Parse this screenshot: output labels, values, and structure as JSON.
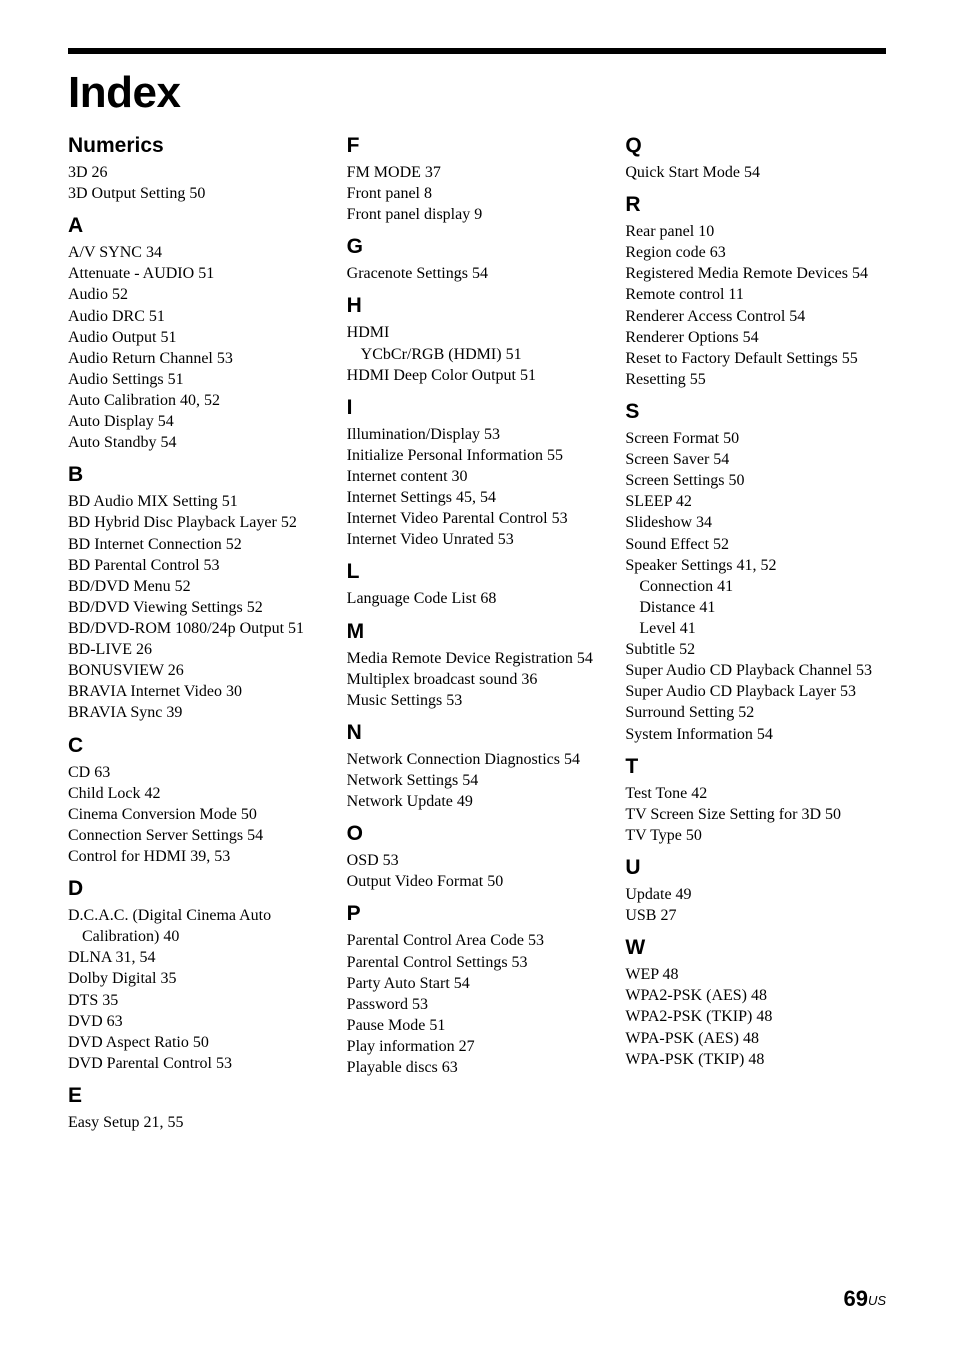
{
  "title": "Index",
  "page_number": "69",
  "page_suffix": "US",
  "colors": {
    "text": "#000000",
    "background": "#ffffff",
    "bar": "#000000"
  },
  "typography": {
    "title_font": "Arial",
    "title_weight": 900,
    "title_size_pt": 33,
    "letter_font": "Arial",
    "letter_weight": 700,
    "letter_size_pt": 16,
    "entry_font": "Times New Roman",
    "entry_size_pt": 12
  },
  "columns": [
    {
      "groups": [
        {
          "letter": "Numerics",
          "entries": [
            "3D 26",
            "3D Output Setting 50"
          ]
        },
        {
          "letter": "A",
          "entries": [
            "A/V SYNC 34",
            "Attenuate - AUDIO 51",
            "Audio 52",
            "Audio DRC 51",
            "Audio Output 51",
            "Audio Return Channel 53",
            "Audio Settings 51",
            "Auto Calibration 40, 52",
            "Auto Display 54",
            "Auto Standby 54"
          ]
        },
        {
          "letter": "B",
          "entries": [
            "BD Audio MIX Setting 51",
            "BD Hybrid Disc Playback Layer 52",
            "BD Internet Connection 52",
            "BD Parental Control 53",
            "BD/DVD Menu 52",
            "BD/DVD Viewing Settings 52",
            "BD/DVD-ROM 1080/24p Output 51",
            "BD-LIVE 26",
            "BONUSVIEW 26",
            "BRAVIA Internet Video 30",
            "BRAVIA Sync 39"
          ]
        },
        {
          "letter": "C",
          "entries": [
            "CD 63",
            "Child Lock 42",
            "Cinema Conversion Mode 50",
            "Connection Server Settings 54",
            "Control for HDMI 39, 53"
          ]
        },
        {
          "letter": "D",
          "entries": [
            "D.C.A.C. (Digital Cinema Auto Calibration) 40",
            "DLNA 31, 54",
            "Dolby Digital 35",
            "DTS 35",
            "DVD 63",
            "DVD Aspect Ratio 50",
            "DVD Parental Control 53"
          ]
        },
        {
          "letter": "E",
          "entries": [
            "Easy Setup 21, 55"
          ]
        }
      ]
    },
    {
      "groups": [
        {
          "letter": "F",
          "entries": [
            "FM MODE 37",
            "Front panel 8",
            "Front panel display 9"
          ]
        },
        {
          "letter": "G",
          "entries": [
            "Gracenote Settings 54"
          ]
        },
        {
          "letter": "H",
          "entries": [
            "HDMI",
            "  YCbCr/RGB (HDMI) 51",
            "HDMI Deep Color Output 51"
          ]
        },
        {
          "letter": "I",
          "entries": [
            "Illumination/Display 53",
            "Initialize Personal Information 55",
            "Internet content 30",
            "Internet Settings 45, 54",
            "Internet Video Parental Control 53",
            "Internet Video Unrated 53"
          ]
        },
        {
          "letter": "L",
          "entries": [
            "Language Code List 68"
          ]
        },
        {
          "letter": "M",
          "entries": [
            "Media Remote Device Registration 54",
            "Multiplex broadcast sound 36",
            "Music Settings 53"
          ]
        },
        {
          "letter": "N",
          "entries": [
            "Network Connection Diagnostics 54",
            "Network Settings 54",
            "Network Update 49"
          ]
        },
        {
          "letter": "O",
          "entries": [
            "OSD 53",
            "Output Video Format 50"
          ]
        },
        {
          "letter": "P",
          "entries": [
            "Parental Control Area Code 53",
            "Parental Control Settings 53",
            "Party Auto Start 54",
            "Password 53",
            "Pause Mode 51",
            "Play information 27",
            "Playable discs 63"
          ]
        }
      ]
    },
    {
      "groups": [
        {
          "letter": "Q",
          "entries": [
            "Quick Start Mode 54"
          ]
        },
        {
          "letter": "R",
          "entries": [
            "Rear panel 10",
            "Region code 63",
            "Registered Media Remote Devices 54",
            "Remote control 11",
            "Renderer Access Control 54",
            "Renderer Options 54",
            "Reset to Factory Default Settings 55",
            "Resetting 55"
          ]
        },
        {
          "letter": "S",
          "entries": [
            "Screen Format 50",
            "Screen Saver 54",
            "Screen Settings 50",
            "SLEEP 42",
            "Slideshow 34",
            "Sound Effect 52",
            "Speaker Settings 41, 52",
            "  Connection 41",
            "  Distance 41",
            "  Level 41",
            "Subtitle 52",
            "Super Audio CD Playback Channel 53",
            "Super Audio CD Playback Layer 53",
            "Surround Setting 52",
            "System Information 54"
          ]
        },
        {
          "letter": "T",
          "entries": [
            "Test Tone 42",
            "TV Screen Size Setting for 3D 50",
            "TV Type 50"
          ]
        },
        {
          "letter": "U",
          "entries": [
            "Update 49",
            "USB 27"
          ]
        },
        {
          "letter": "W",
          "entries": [
            "WEP 48",
            "WPA2-PSK (AES) 48",
            "WPA2-PSK (TKIP) 48",
            "WPA-PSK (AES) 48",
            "WPA-PSK (TKIP) 48"
          ]
        }
      ]
    }
  ]
}
